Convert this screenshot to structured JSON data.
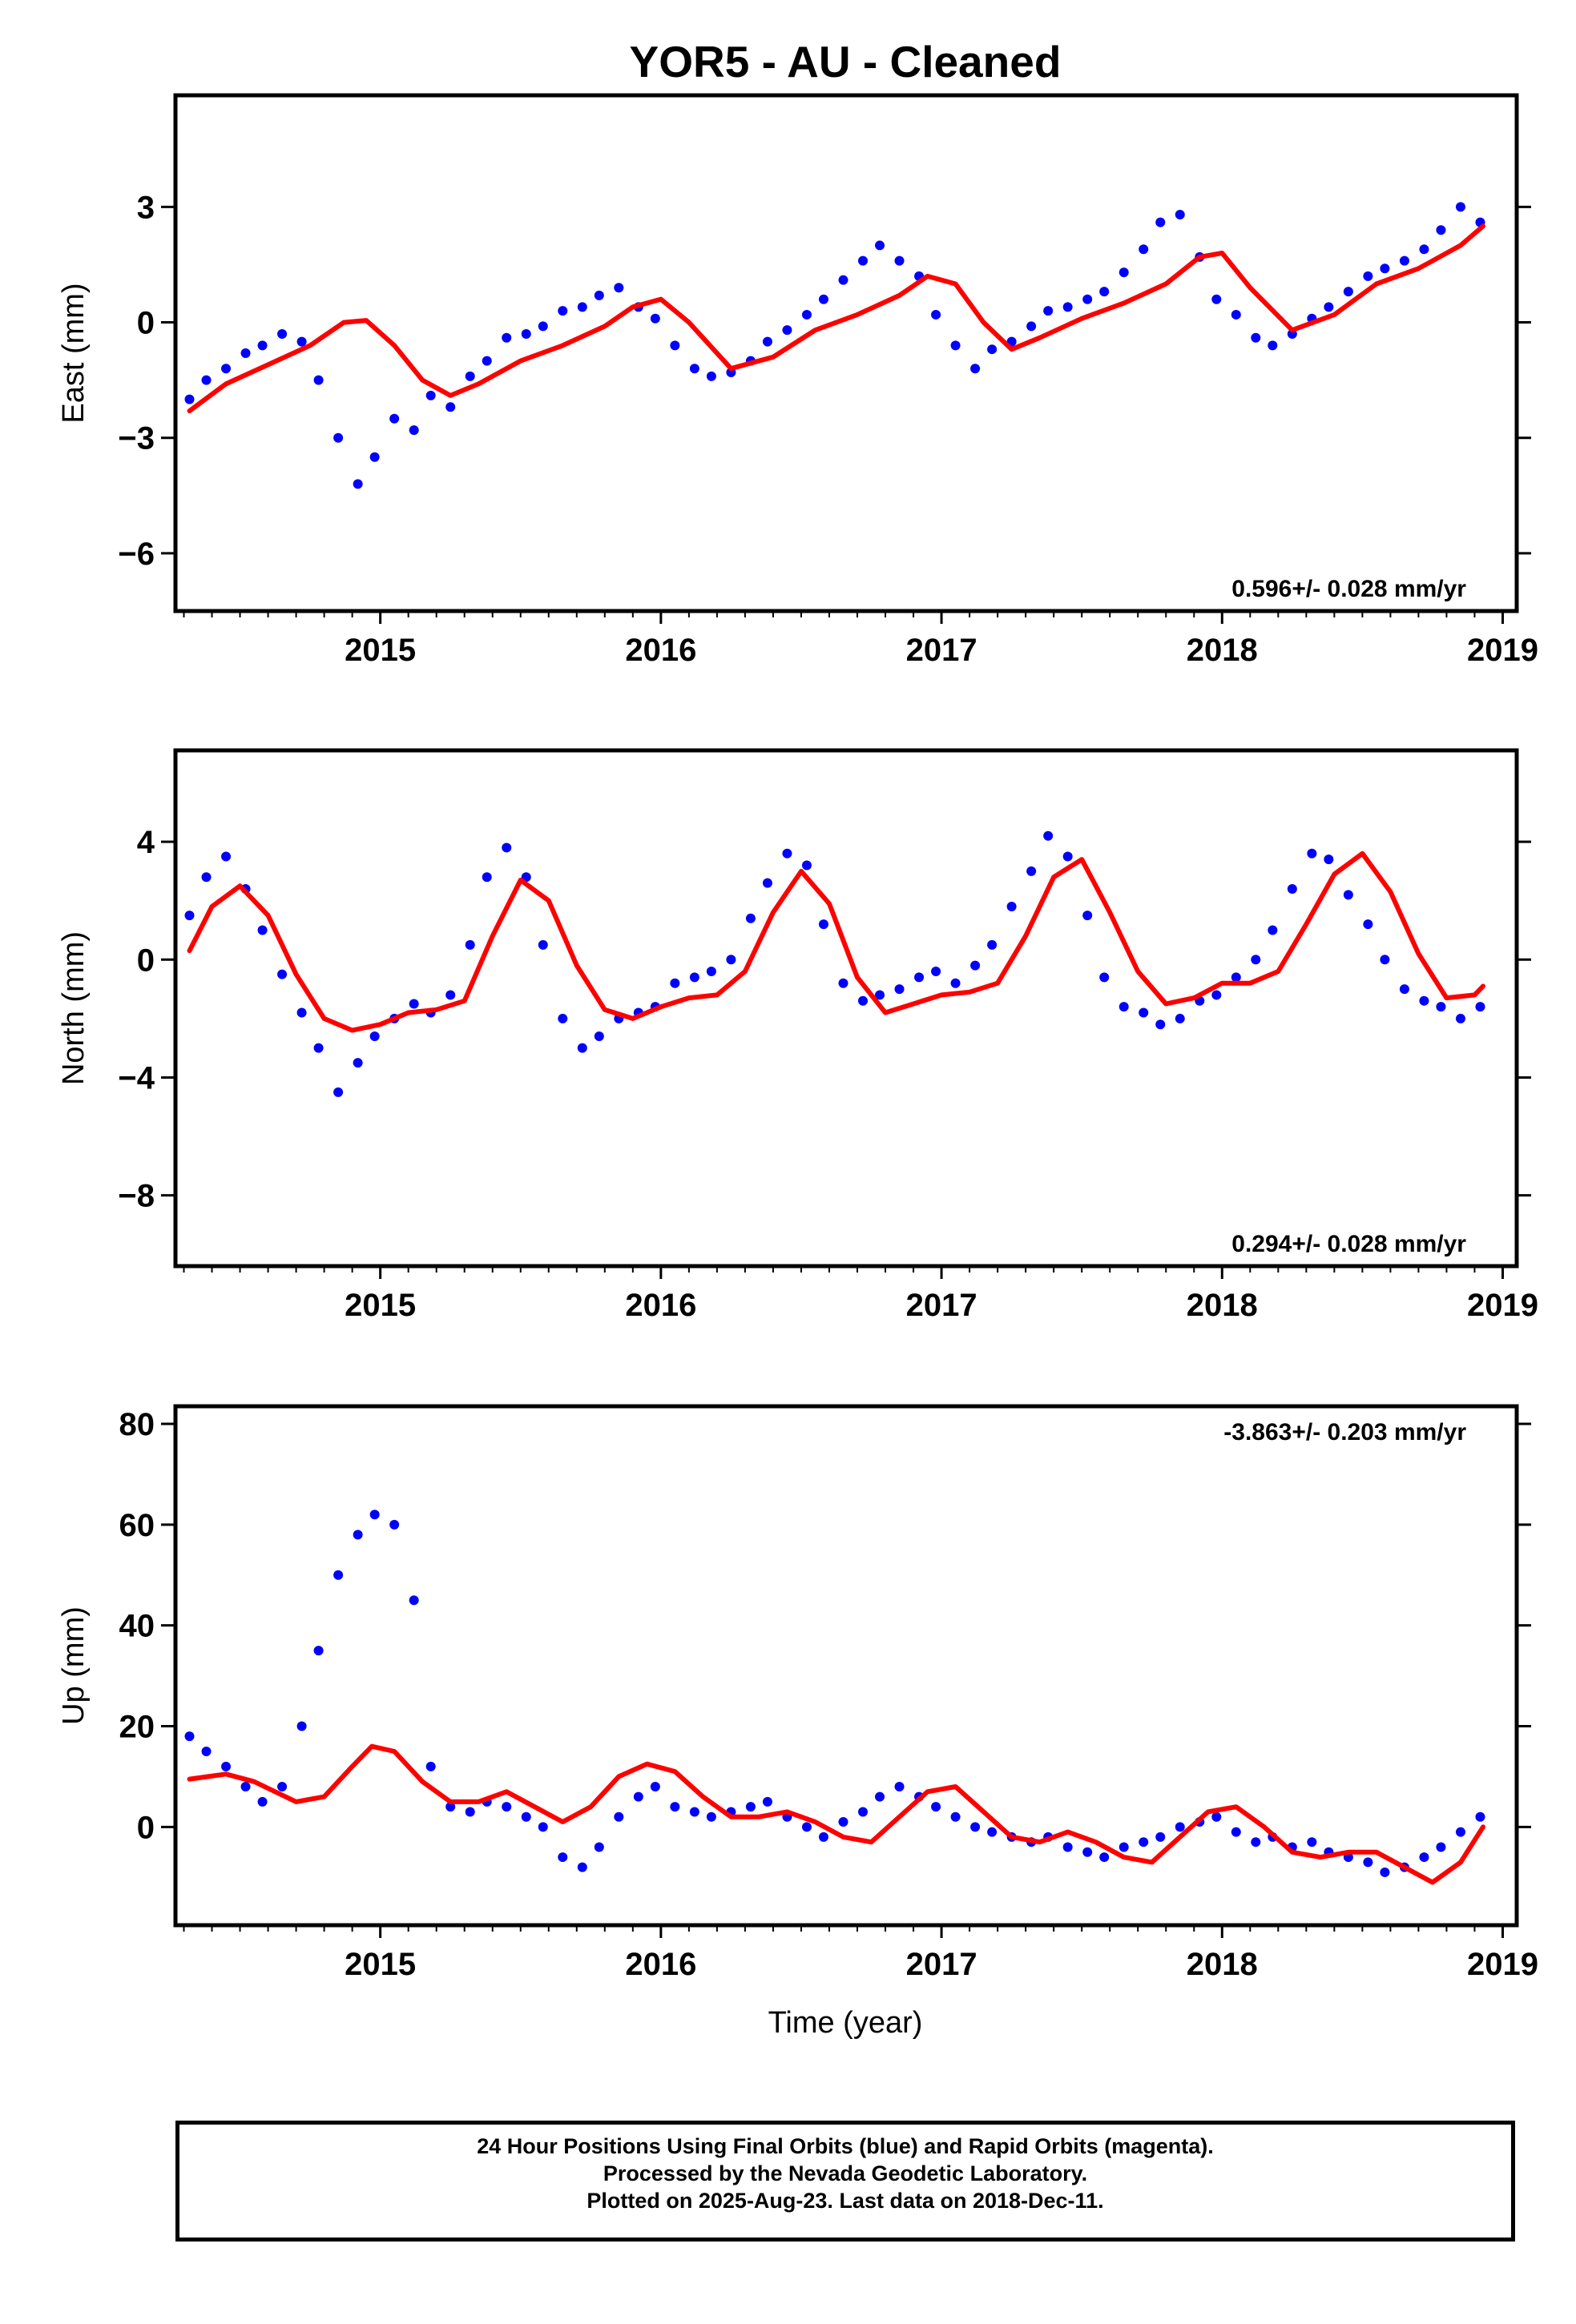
{
  "title": "YOR5  - AU - Cleaned",
  "xlabel": "Time (year)",
  "footer": [
    "24 Hour Positions Using Final Orbits (blue) and Rapid Orbits (magenta).",
    "Processed by the Nevada Geodetic Laboratory.",
    "Plotted on 2025-Aug-23. Last data on 2018-Dec-11."
  ],
  "colors": {
    "points": "#0000ff",
    "fit": "#ff0000",
    "axes": "#000000"
  },
  "chart_data": [
    {
      "type": "scatter",
      "ylabel": "East (mm)",
      "rate_label": "0.596+/- 0.028 mm/yr",
      "xlim": [
        2014.27,
        2019.05
      ],
      "ylim": [
        -7.5,
        5.9
      ],
      "x_ticks": [
        2015,
        2016,
        2017,
        2018,
        2019
      ],
      "y_ticks": [
        -6,
        -3,
        0,
        3
      ],
      "series": [
        {
          "name": "",
          "style": "points",
          "x": [
            2014.32,
            2014.38,
            2014.45,
            2014.52,
            2014.58,
            2014.65,
            2014.72,
            2014.78,
            2014.85,
            2014.92,
            2014.98,
            2015.05,
            2015.12,
            2015.18,
            2015.25,
            2015.32,
            2015.38,
            2015.45,
            2015.52,
            2015.58,
            2015.65,
            2015.72,
            2015.78,
            2015.85,
            2015.92,
            2015.98,
            2016.05,
            2016.12,
            2016.18,
            2016.25,
            2016.32,
            2016.38,
            2016.45,
            2016.52,
            2016.58,
            2016.65,
            2016.72,
            2016.78,
            2016.85,
            2016.92,
            2016.98,
            2017.05,
            2017.12,
            2017.18,
            2017.25,
            2017.32,
            2017.38,
            2017.45,
            2017.52,
            2017.58,
            2017.65,
            2017.72,
            2017.78,
            2017.85,
            2017.92,
            2017.98,
            2018.05,
            2018.12,
            2018.18,
            2018.25,
            2018.32,
            2018.38,
            2018.45,
            2018.52,
            2018.58,
            2018.65,
            2018.72,
            2018.78,
            2018.85,
            2018.92
          ],
          "y": [
            -2.0,
            -1.5,
            -1.2,
            -0.8,
            -0.6,
            -0.3,
            -0.5,
            -1.5,
            -3.0,
            -4.2,
            -3.5,
            -2.5,
            -2.8,
            -1.9,
            -2.2,
            -1.4,
            -1.0,
            -0.4,
            -0.3,
            -0.1,
            0.3,
            0.4,
            0.7,
            0.9,
            0.4,
            0.1,
            -0.6,
            -1.2,
            -1.4,
            -1.3,
            -1.0,
            -0.5,
            -0.2,
            0.2,
            0.6,
            1.1,
            1.6,
            2.0,
            1.6,
            1.2,
            0.2,
            -0.6,
            -1.2,
            -0.7,
            -0.5,
            -0.1,
            0.3,
            0.4,
            0.6,
            0.8,
            1.3,
            1.9,
            2.6,
            2.8,
            1.7,
            0.6,
            0.2,
            -0.4,
            -0.6,
            -0.3,
            0.1,
            0.4,
            0.8,
            1.2,
            1.4,
            1.6,
            1.9,
            2.4,
            3.0,
            2.6
          ]
        },
        {
          "name": "",
          "style": "line",
          "x": [
            2014.32,
            2014.45,
            2014.6,
            2014.75,
            2014.87,
            2014.95,
            2015.05,
            2015.15,
            2015.25,
            2015.35,
            2015.5,
            2015.65,
            2015.8,
            2015.9,
            2016.0,
            2016.1,
            2016.25,
            2016.4,
            2016.55,
            2016.7,
            2016.85,
            2016.95,
            2017.05,
            2017.15,
            2017.25,
            2017.35,
            2017.5,
            2017.65,
            2017.8,
            2017.92,
            2018.0,
            2018.1,
            2018.25,
            2018.4,
            2018.55,
            2018.7,
            2018.85,
            2018.93
          ],
          "y": [
            -2.3,
            -1.6,
            -1.1,
            -0.6,
            0.0,
            0.05,
            -0.6,
            -1.5,
            -1.9,
            -1.6,
            -1.0,
            -0.6,
            -0.1,
            0.4,
            0.6,
            0.0,
            -1.2,
            -0.9,
            -0.2,
            0.2,
            0.7,
            1.2,
            1.0,
            0.0,
            -0.7,
            -0.4,
            0.1,
            0.5,
            1.0,
            1.7,
            1.8,
            0.9,
            -0.2,
            0.2,
            1.0,
            1.4,
            2.0,
            2.5
          ]
        }
      ]
    },
    {
      "type": "scatter",
      "ylabel": "North (mm)",
      "rate_label": "0.294+/- 0.028 mm/yr",
      "xlim": [
        2014.27,
        2019.05
      ],
      "ylim": [
        -10.4,
        7.1
      ],
      "x_ticks": [
        2015,
        2016,
        2017,
        2018,
        2019
      ],
      "y_ticks": [
        -8,
        -4,
        0,
        4
      ],
      "series": [
        {
          "name": "",
          "style": "points",
          "x": [
            2014.32,
            2014.38,
            2014.45,
            2014.52,
            2014.58,
            2014.65,
            2014.72,
            2014.78,
            2014.85,
            2014.92,
            2014.98,
            2015.05,
            2015.12,
            2015.18,
            2015.25,
            2015.32,
            2015.38,
            2015.45,
            2015.52,
            2015.58,
            2015.65,
            2015.72,
            2015.78,
            2015.85,
            2015.92,
            2015.98,
            2016.05,
            2016.12,
            2016.18,
            2016.25,
            2016.32,
            2016.38,
            2016.45,
            2016.52,
            2016.58,
            2016.65,
            2016.72,
            2016.78,
            2016.85,
            2016.92,
            2016.98,
            2017.05,
            2017.12,
            2017.18,
            2017.25,
            2017.32,
            2017.38,
            2017.45,
            2017.52,
            2017.58,
            2017.65,
            2017.72,
            2017.78,
            2017.85,
            2017.92,
            2017.98,
            2018.05,
            2018.12,
            2018.18,
            2018.25,
            2018.32,
            2018.38,
            2018.45,
            2018.52,
            2018.58,
            2018.65,
            2018.72,
            2018.78,
            2018.85,
            2018.92
          ],
          "y": [
            1.5,
            2.8,
            3.5,
            2.4,
            1.0,
            -0.5,
            -1.8,
            -3.0,
            -4.5,
            -3.5,
            -2.6,
            -2.0,
            -1.5,
            -1.8,
            -1.2,
            0.5,
            2.8,
            3.8,
            2.8,
            0.5,
            -2.0,
            -3.0,
            -2.6,
            -2.0,
            -1.8,
            -1.6,
            -0.8,
            -0.6,
            -0.4,
            0.0,
            1.4,
            2.6,
            3.6,
            3.2,
            1.2,
            -0.8,
            -1.4,
            -1.2,
            -1.0,
            -0.6,
            -0.4,
            -0.8,
            -0.2,
            0.5,
            1.8,
            3.0,
            4.2,
            3.5,
            1.5,
            -0.6,
            -1.6,
            -1.8,
            -2.2,
            -2.0,
            -1.4,
            -1.2,
            -0.6,
            0.0,
            1.0,
            2.4,
            3.6,
            3.4,
            2.2,
            1.2,
            0.0,
            -1.0,
            -1.4,
            -1.6,
            -2.0,
            -1.6
          ]
        },
        {
          "name": "",
          "style": "line",
          "x": [
            2014.32,
            2014.4,
            2014.5,
            2014.6,
            2014.7,
            2014.8,
            2014.9,
            2015.0,
            2015.1,
            2015.2,
            2015.3,
            2015.4,
            2015.5,
            2015.6,
            2015.7,
            2015.8,
            2015.9,
            2016.0,
            2016.1,
            2016.2,
            2016.3,
            2016.4,
            2016.5,
            2016.6,
            2016.7,
            2016.8,
            2016.9,
            2017.0,
            2017.1,
            2017.2,
            2017.3,
            2017.4,
            2017.5,
            2017.6,
            2017.7,
            2017.8,
            2017.9,
            2018.0,
            2018.1,
            2018.2,
            2018.3,
            2018.4,
            2018.5,
            2018.6,
            2018.7,
            2018.8,
            2018.9,
            2018.93
          ],
          "y": [
            0.3,
            1.8,
            2.5,
            1.5,
            -0.5,
            -2.0,
            -2.4,
            -2.2,
            -1.8,
            -1.7,
            -1.4,
            0.8,
            2.7,
            2.0,
            -0.2,
            -1.7,
            -2.0,
            -1.6,
            -1.3,
            -1.2,
            -0.4,
            1.6,
            3.0,
            1.9,
            -0.6,
            -1.8,
            -1.5,
            -1.2,
            -1.1,
            -0.8,
            0.8,
            2.8,
            3.4,
            1.6,
            -0.4,
            -1.5,
            -1.3,
            -0.8,
            -0.8,
            -0.4,
            1.2,
            2.9,
            3.6,
            2.3,
            0.2,
            -1.3,
            -1.2,
            -0.9
          ]
        }
      ]
    },
    {
      "type": "scatter",
      "ylabel": "Up (mm)",
      "rate_label": "-3.863+/- 0.203 mm/yr",
      "xlim": [
        2014.27,
        2019.05
      ],
      "ylim": [
        -19.5,
        83.5
      ],
      "x_ticks": [
        2015,
        2016,
        2017,
        2018,
        2019
      ],
      "y_ticks": [
        0,
        20,
        40,
        60,
        80
      ],
      "series": [
        {
          "name": "",
          "style": "points",
          "x": [
            2014.32,
            2014.38,
            2014.45,
            2014.52,
            2014.58,
            2014.65,
            2014.72,
            2014.78,
            2014.85,
            2014.92,
            2014.98,
            2015.05,
            2015.12,
            2015.18,
            2015.25,
            2015.32,
            2015.38,
            2015.45,
            2015.52,
            2015.58,
            2015.65,
            2015.72,
            2015.78,
            2015.85,
            2015.92,
            2015.98,
            2016.05,
            2016.12,
            2016.18,
            2016.25,
            2016.32,
            2016.38,
            2016.45,
            2016.52,
            2016.58,
            2016.65,
            2016.72,
            2016.78,
            2016.85,
            2016.92,
            2016.98,
            2017.05,
            2017.12,
            2017.18,
            2017.25,
            2017.32,
            2017.38,
            2017.45,
            2017.52,
            2017.58,
            2017.65,
            2017.72,
            2017.78,
            2017.85,
            2017.92,
            2017.98,
            2018.05,
            2018.12,
            2018.18,
            2018.25,
            2018.32,
            2018.38,
            2018.45,
            2018.52,
            2018.58,
            2018.65,
            2018.72,
            2018.78,
            2018.85,
            2018.92
          ],
          "y": [
            18,
            15,
            12,
            8,
            5,
            8,
            20,
            35,
            50,
            58,
            62,
            60,
            45,
            12,
            4,
            3,
            5,
            4,
            2,
            0,
            -6,
            -8,
            -4,
            2,
            6,
            8,
            4,
            3,
            2,
            3,
            4,
            5,
            2,
            0,
            -2,
            1,
            3,
            6,
            8,
            6,
            4,
            2,
            0,
            -1,
            -2,
            -3,
            -2,
            -4,
            -5,
            -6,
            -4,
            -3,
            -2,
            0,
            1,
            2,
            -1,
            -3,
            -2,
            -4,
            -3,
            -5,
            -6,
            -7,
            -9,
            -8,
            -6,
            -4,
            -1,
            2
          ]
        },
        {
          "name": "",
          "style": "line",
          "x": [
            2014.32,
            2014.45,
            2014.55,
            2014.7,
            2014.8,
            2014.9,
            2014.97,
            2015.05,
            2015.15,
            2015.25,
            2015.35,
            2015.45,
            2015.55,
            2015.65,
            2015.75,
            2015.85,
            2015.95,
            2016.05,
            2016.15,
            2016.25,
            2016.35,
            2016.45,
            2016.55,
            2016.65,
            2016.75,
            2016.85,
            2016.95,
            2017.05,
            2017.15,
            2017.25,
            2017.35,
            2017.45,
            2017.55,
            2017.65,
            2017.75,
            2017.85,
            2017.95,
            2018.05,
            2018.15,
            2018.25,
            2018.35,
            2018.45,
            2018.55,
            2018.65,
            2018.75,
            2018.85,
            2018.93
          ],
          "y": [
            9.5,
            10.5,
            9,
            5,
            6,
            12,
            16,
            15,
            9,
            5,
            5,
            7,
            4,
            1,
            4,
            10,
            12.5,
            11,
            6,
            2,
            2,
            3,
            1,
            -2,
            -3,
            2,
            7,
            8,
            3,
            -2,
            -3,
            -1,
            -3,
            -6,
            -7,
            -2,
            3,
            4,
            0,
            -5,
            -6,
            -5,
            -5,
            -8,
            -11,
            -7,
            0
          ]
        }
      ]
    }
  ]
}
